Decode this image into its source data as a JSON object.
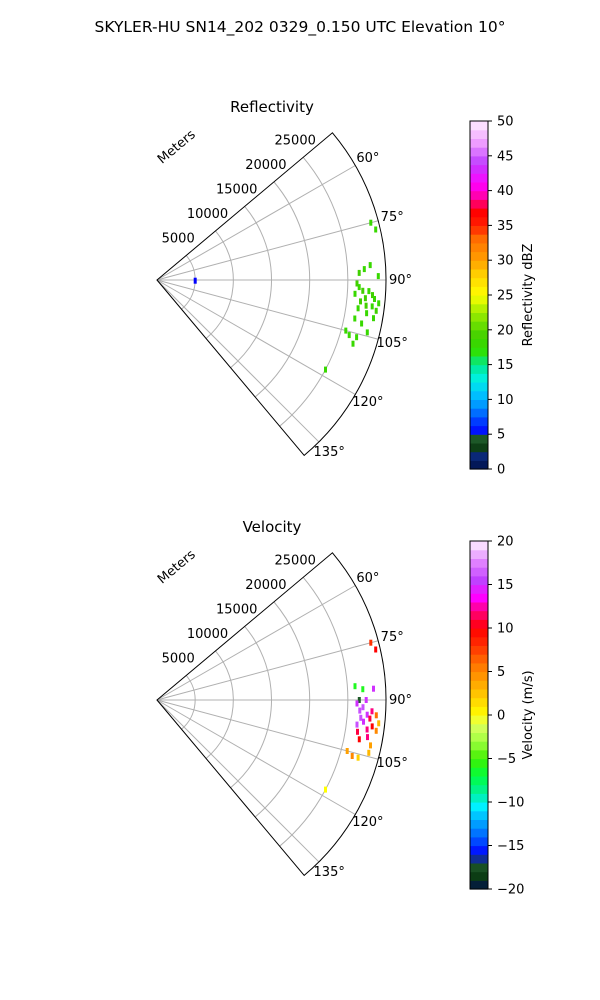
{
  "suptitle": "SKYLER-HU  SN14_202  0329_0.150 UTC Elevation 10°",
  "colors": {
    "grid": "#b0b0b0",
    "axis": "#000000"
  },
  "chart_data": [
    {
      "type": "heatmap",
      "projection": "polar-sector",
      "title": "Reflectivity",
      "radial_label": "Meters",
      "theta_range_deg": [
        50,
        140
      ],
      "theta_ticks_deg": [
        60,
        75,
        90,
        105,
        120,
        135
      ],
      "theta_tick_labels": [
        "60°",
        "75°",
        "90°",
        "105°",
        "120°",
        "135°"
      ],
      "r_range": [
        0,
        30000
      ],
      "r_ticks": [
        5000,
        10000,
        15000,
        20000,
        25000
      ],
      "r_tick_labels": [
        "5000",
        "10000",
        "15000",
        "20000",
        "25000"
      ],
      "grid": true,
      "colorbar": {
        "label": "Reflectivity dBZ",
        "range": [
          0,
          50
        ],
        "ticks": [
          0,
          5,
          10,
          15,
          20,
          25,
          30,
          35,
          40,
          45,
          50
        ],
        "tick_labels": [
          "0",
          "5",
          "10",
          "15",
          "20",
          "25",
          "30",
          "35",
          "40",
          "45",
          "50"
        ],
        "colormap": "NWSRef"
      },
      "echoes": [
        {
          "theta_deg": 91,
          "r": 5000,
          "value": 5
        },
        {
          "theta_deg": 75,
          "r": 29000,
          "value": 18
        },
        {
          "theta_deg": 77,
          "r": 29400,
          "value": 18
        },
        {
          "theta_deg": 86,
          "r": 28000,
          "value": 18
        },
        {
          "theta_deg": 87,
          "r": 27200,
          "value": 18
        },
        {
          "theta_deg": 88,
          "r": 26500,
          "value": 19
        },
        {
          "theta_deg": 89,
          "r": 29000,
          "value": 18
        },
        {
          "theta_deg": 91,
          "r": 26200,
          "value": 19
        },
        {
          "theta_deg": 92,
          "r": 26500,
          "value": 18
        },
        {
          "theta_deg": 93,
          "r": 27000,
          "value": 19
        },
        {
          "theta_deg": 93,
          "r": 27800,
          "value": 18
        },
        {
          "theta_deg": 94,
          "r": 28300,
          "value": 19
        },
        {
          "theta_deg": 94,
          "r": 26000,
          "value": 18
        },
        {
          "theta_deg": 95,
          "r": 27400,
          "value": 19
        },
        {
          "theta_deg": 95,
          "r": 28600,
          "value": 18
        },
        {
          "theta_deg": 96,
          "r": 26800,
          "value": 19
        },
        {
          "theta_deg": 96,
          "r": 29200,
          "value": 18
        },
        {
          "theta_deg": 97,
          "r": 27600,
          "value": 19
        },
        {
          "theta_deg": 97,
          "r": 28400,
          "value": 18
        },
        {
          "theta_deg": 98,
          "r": 26600,
          "value": 18
        },
        {
          "theta_deg": 98,
          "r": 29000,
          "value": 19
        },
        {
          "theta_deg": 99,
          "r": 27800,
          "value": 18
        },
        {
          "theta_deg": 100,
          "r": 28800,
          "value": 18
        },
        {
          "theta_deg": 101,
          "r": 26400,
          "value": 18
        },
        {
          "theta_deg": 102,
          "r": 27400,
          "value": 18
        },
        {
          "theta_deg": 105,
          "r": 25600,
          "value": 18
        },
        {
          "theta_deg": 106,
          "r": 26200,
          "value": 18
        },
        {
          "theta_deg": 106,
          "r": 27200,
          "value": 18
        },
        {
          "theta_deg": 104,
          "r": 28400,
          "value": 18
        },
        {
          "theta_deg": 108,
          "r": 27000,
          "value": 18
        },
        {
          "theta_deg": 118,
          "r": 25000,
          "value": 18
        }
      ]
    },
    {
      "type": "heatmap",
      "projection": "polar-sector",
      "title": "Velocity",
      "radial_label": "Meters",
      "theta_range_deg": [
        50,
        140
      ],
      "theta_ticks_deg": [
        60,
        75,
        90,
        105,
        120,
        135
      ],
      "theta_tick_labels": [
        "60°",
        "75°",
        "90°",
        "105°",
        "120°",
        "135°"
      ],
      "r_range": [
        0,
        30000
      ],
      "r_ticks": [
        5000,
        10000,
        15000,
        20000,
        25000
      ],
      "r_tick_labels": [
        "5000",
        "10000",
        "15000",
        "20000",
        "25000"
      ],
      "grid": true,
      "colorbar": {
        "label": "Velocity (m/s)",
        "range": [
          -20,
          20
        ],
        "ticks": [
          -20,
          -15,
          -10,
          -5,
          0,
          5,
          10,
          15,
          20
        ],
        "tick_labels": [
          "−20",
          "−15",
          "−10",
          "−5",
          "0",
          "5",
          "10",
          "15",
          "20"
        ],
        "colormap": "NWSVel"
      },
      "echoes": [
        {
          "theta_deg": 75,
          "r": 29000,
          "value": 8
        },
        {
          "theta_deg": 77,
          "r": 29400,
          "value": 10
        },
        {
          "theta_deg": 86,
          "r": 26000,
          "value": -6
        },
        {
          "theta_deg": 87,
          "r": 27000,
          "value": -6
        },
        {
          "theta_deg": 87,
          "r": 28400,
          "value": 15
        },
        {
          "theta_deg": 90,
          "r": 26500,
          "value": -17
        },
        {
          "theta_deg": 90,
          "r": 27400,
          "value": 15
        },
        {
          "theta_deg": 91,
          "r": 26200,
          "value": 15
        },
        {
          "theta_deg": 92,
          "r": 27000,
          "value": 16
        },
        {
          "theta_deg": 93,
          "r": 28200,
          "value": 12
        },
        {
          "theta_deg": 93,
          "r": 26600,
          "value": 16
        },
        {
          "theta_deg": 94,
          "r": 27600,
          "value": 15
        },
        {
          "theta_deg": 94,
          "r": 28800,
          "value": 6
        },
        {
          "theta_deg": 95,
          "r": 26800,
          "value": 16
        },
        {
          "theta_deg": 95,
          "r": 28000,
          "value": 11
        },
        {
          "theta_deg": 96,
          "r": 29200,
          "value": 3
        },
        {
          "theta_deg": 96,
          "r": 27200,
          "value": 15
        },
        {
          "theta_deg": 97,
          "r": 28400,
          "value": 10
        },
        {
          "theta_deg": 97,
          "r": 26400,
          "value": 16
        },
        {
          "theta_deg": 98,
          "r": 27800,
          "value": 12
        },
        {
          "theta_deg": 98,
          "r": 29000,
          "value": 5
        },
        {
          "theta_deg": 99,
          "r": 26600,
          "value": 11
        },
        {
          "theta_deg": 100,
          "r": 28000,
          "value": 12
        },
        {
          "theta_deg": 101,
          "r": 27000,
          "value": 10
        },
        {
          "theta_deg": 102,
          "r": 28600,
          "value": 4
        },
        {
          "theta_deg": 105,
          "r": 25800,
          "value": 4
        },
        {
          "theta_deg": 106,
          "r": 26600,
          "value": 5
        },
        {
          "theta_deg": 106,
          "r": 27400,
          "value": 2
        },
        {
          "theta_deg": 104,
          "r": 28600,
          "value": 3
        },
        {
          "theta_deg": 118,
          "r": 25000,
          "value": 0
        }
      ]
    }
  ]
}
